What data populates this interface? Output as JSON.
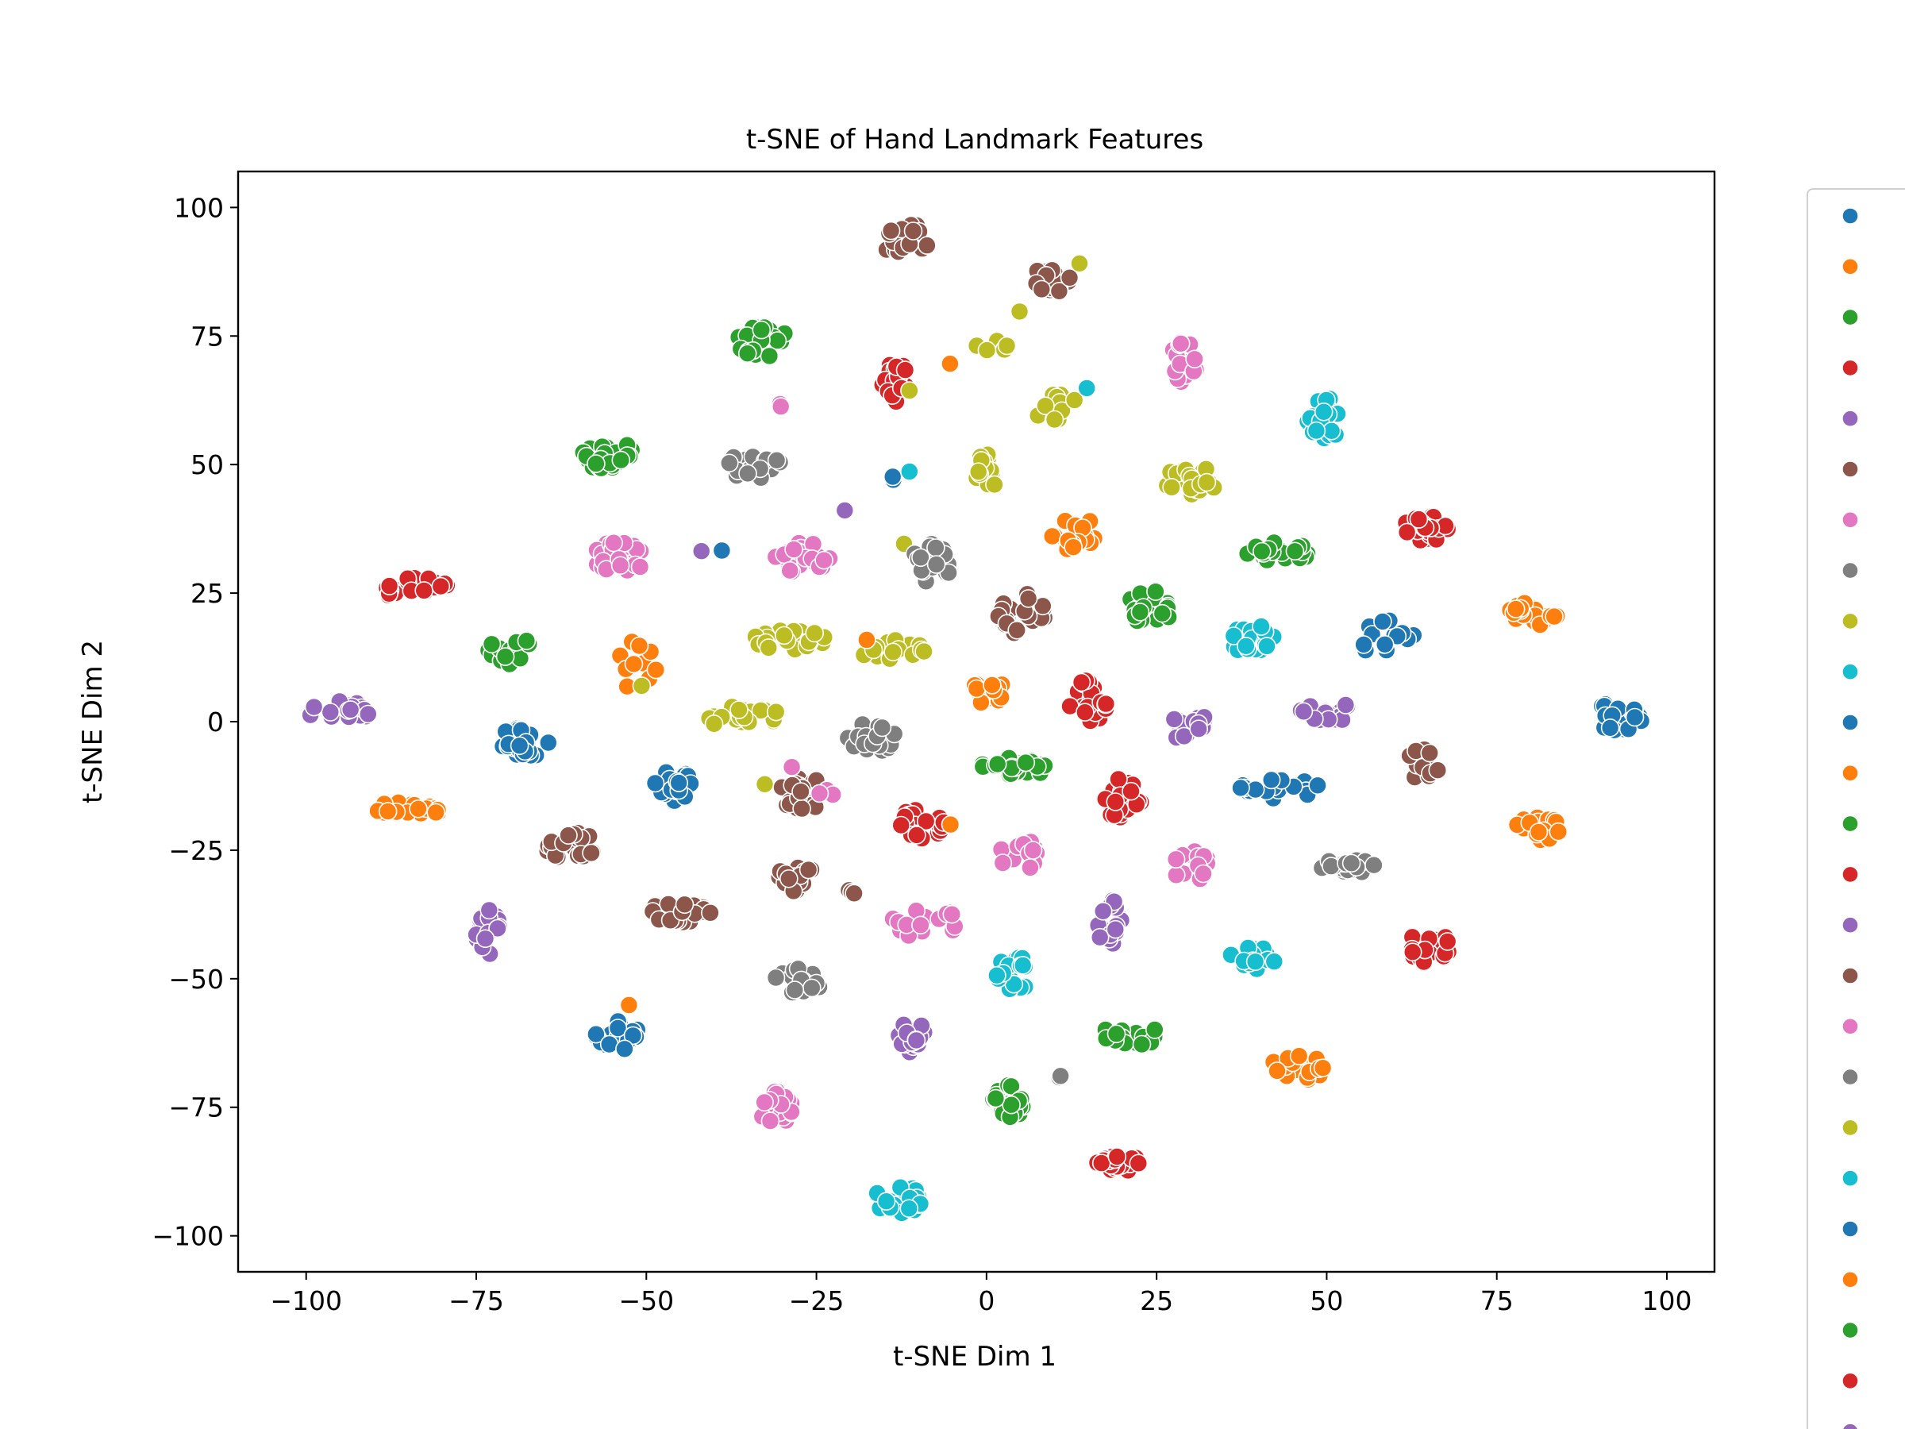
{
  "chart_data": {
    "type": "scatter",
    "title": "t-SNE of Hand Landmark Features",
    "xlabel": "t-SNE Dim 1",
    "ylabel": "t-SNE Dim 2",
    "xlim": [
      -110,
      107
    ],
    "ylim": [
      -107,
      107
    ],
    "xticks": [
      -100,
      -75,
      -50,
      -25,
      0,
      25,
      50,
      75,
      100
    ],
    "yticks": [
      -100,
      -75,
      -50,
      -25,
      0,
      25,
      50,
      75,
      100
    ],
    "xtick_labels": [
      "−100",
      "−75",
      "−50",
      "−25",
      "0",
      "25",
      "50",
      "75",
      "100"
    ],
    "ytick_labels": [
      "−100",
      "−75",
      "−50",
      "−25",
      "0",
      "25",
      "50",
      "75",
      "100"
    ],
    "grid": false,
    "legend": {
      "placement": "right, outside plot (clipped at image edge)",
      "marker_colors": [
        "#1f77b4",
        "#ff7f0e",
        "#2ca02c",
        "#d62728",
        "#9467bd",
        "#8c564b",
        "#e377c2",
        "#7f7f7f",
        "#bcbd22",
        "#17becf",
        "#1f77b4",
        "#ff7f0e",
        "#2ca02c",
        "#d62728",
        "#9467bd",
        "#8c564b",
        "#e377c2",
        "#7f7f7f",
        "#bcbd22",
        "#17becf",
        "#1f77b4",
        "#ff7f0e",
        "#2ca02c",
        "#d62728",
        "#9467bd"
      ]
    },
    "palette": {
      "blue": "#1f77b4",
      "orange": "#ff7f0e",
      "green": "#2ca02c",
      "red": "#d62728",
      "purple": "#9467bd",
      "brown": "#8c564b",
      "pink": "#e377c2",
      "gray": "#7f7f7f",
      "olive": "#bcbd22",
      "cyan": "#17becf"
    },
    "clusters": [
      {
        "color": "brown",
        "x": -12,
        "y": 94,
        "dx": 4,
        "dy": 3,
        "n": 18
      },
      {
        "color": "brown",
        "x": 10,
        "y": 86,
        "dx": 3,
        "dy": 3.5,
        "n": 20
      },
      {
        "color": "olive",
        "x": 14,
        "y": 89,
        "dx": 0.5,
        "dy": 0.5,
        "n": 1
      },
      {
        "color": "olive",
        "x": 5,
        "y": 80,
        "dx": 0.5,
        "dy": 0.5,
        "n": 1
      },
      {
        "color": "olive",
        "x": 1,
        "y": 73,
        "dx": 2.5,
        "dy": 1.5,
        "n": 5
      },
      {
        "color": "orange",
        "x": -5.5,
        "y": 70,
        "dx": 0.5,
        "dy": 0.5,
        "n": 1
      },
      {
        "color": "green",
        "x": -33,
        "y": 74,
        "dx": 4,
        "dy": 3,
        "n": 20
      },
      {
        "color": "pink",
        "x": -30,
        "y": 62,
        "dx": 0.8,
        "dy": 1.2,
        "n": 3
      },
      {
        "color": "red",
        "x": -13.5,
        "y": 66,
        "dx": 2,
        "dy": 4.5,
        "n": 18
      },
      {
        "color": "olive",
        "x": -11,
        "y": 64,
        "dx": 0.5,
        "dy": 0.5,
        "n": 1
      },
      {
        "color": "olive",
        "x": 11,
        "y": 61,
        "dx": 4,
        "dy": 3,
        "n": 12
      },
      {
        "color": "cyan",
        "x": 15,
        "y": 65,
        "dx": 0.5,
        "dy": 0.5,
        "n": 1
      },
      {
        "color": "pink",
        "x": 29,
        "y": 70,
        "dx": 2,
        "dy": 4,
        "n": 20
      },
      {
        "color": "cyan",
        "x": 50,
        "y": 59,
        "dx": 3,
        "dy": 4,
        "n": 22
      },
      {
        "color": "green",
        "x": -56,
        "y": 52,
        "dx": 4,
        "dy": 3,
        "n": 24
      },
      {
        "color": "gray",
        "x": -34,
        "y": 50,
        "dx": 4,
        "dy": 3,
        "n": 22
      },
      {
        "color": "blue",
        "x": -14,
        "y": 47,
        "dx": 0.8,
        "dy": 0.8,
        "n": 2
      },
      {
        "color": "cyan",
        "x": -11.5,
        "y": 49,
        "dx": 0.5,
        "dy": 0.5,
        "n": 1
      },
      {
        "color": "olive",
        "x": 0,
        "y": 48,
        "dx": 1.5,
        "dy": 4.5,
        "n": 16
      },
      {
        "color": "olive",
        "x": 30,
        "y": 47,
        "dx": 4,
        "dy": 3,
        "n": 22
      },
      {
        "color": "red",
        "x": 65,
        "y": 38,
        "dx": 4,
        "dy": 3,
        "n": 22
      },
      {
        "color": "purple",
        "x": -21,
        "y": 41,
        "dx": 0.5,
        "dy": 0.5,
        "n": 1
      },
      {
        "color": "pink",
        "x": -54,
        "y": 32,
        "dx": 4,
        "dy": 3,
        "n": 26
      },
      {
        "color": "purple",
        "x": -42,
        "y": 33,
        "dx": 0.5,
        "dy": 0.5,
        "n": 1
      },
      {
        "color": "blue",
        "x": -39,
        "y": 33,
        "dx": 0.5,
        "dy": 0.5,
        "n": 1
      },
      {
        "color": "pink",
        "x": -27,
        "y": 32,
        "dx": 4,
        "dy": 3.5,
        "n": 22
      },
      {
        "color": "olive",
        "x": -12,
        "y": 35,
        "dx": 0.5,
        "dy": 0.5,
        "n": 1
      },
      {
        "color": "gray",
        "x": -8,
        "y": 31,
        "dx": 3,
        "dy": 4,
        "n": 18
      },
      {
        "color": "orange",
        "x": 13,
        "y": 37,
        "dx": 3.5,
        "dy": 4,
        "n": 18
      },
      {
        "color": "green",
        "x": 43,
        "y": 33,
        "dx": 5,
        "dy": 2,
        "n": 20
      },
      {
        "color": "red",
        "x": -84,
        "y": 26,
        "dx": 5,
        "dy": 2.5,
        "n": 20
      },
      {
        "color": "green",
        "x": -70,
        "y": 14,
        "dx": 3.5,
        "dy": 3,
        "n": 20
      },
      {
        "color": "orange",
        "x": -51,
        "y": 11,
        "dx": 4,
        "dy": 5,
        "n": 12
      },
      {
        "color": "olive",
        "x": -51,
        "y": 7,
        "dx": 0.5,
        "dy": 0.5,
        "n": 1
      },
      {
        "color": "olive",
        "x": -29,
        "y": 16,
        "dx": 6,
        "dy": 2,
        "n": 22
      },
      {
        "color": "olive",
        "x": -14,
        "y": 14,
        "dx": 5,
        "dy": 2,
        "n": 20
      },
      {
        "color": "orange",
        "x": -17.5,
        "y": 16,
        "dx": 0.5,
        "dy": 0.5,
        "n": 1
      },
      {
        "color": "brown",
        "x": 5,
        "y": 21,
        "dx": 4,
        "dy": 4,
        "n": 24
      },
      {
        "color": "green",
        "x": 24,
        "y": 22,
        "dx": 3.5,
        "dy": 3.5,
        "n": 20
      },
      {
        "color": "cyan",
        "x": 39,
        "y": 16,
        "dx": 3.5,
        "dy": 3,
        "n": 20
      },
      {
        "color": "blue",
        "x": 59,
        "y": 16,
        "dx": 4,
        "dy": 4,
        "n": 14
      },
      {
        "color": "orange",
        "x": 80,
        "y": 21,
        "dx": 4,
        "dy": 2.5,
        "n": 24
      },
      {
        "color": "purple",
        "x": -95,
        "y": 2,
        "dx": 5,
        "dy": 2,
        "n": 20
      },
      {
        "color": "olive",
        "x": -36,
        "y": 1,
        "dx": 6,
        "dy": 2,
        "n": 22
      },
      {
        "color": "gray",
        "x": -17,
        "y": -3,
        "dx": 4,
        "dy": 3,
        "n": 20
      },
      {
        "color": "orange",
        "x": 0,
        "y": 6,
        "dx": 2.5,
        "dy": 3.5,
        "n": 18
      },
      {
        "color": "red",
        "x": 15,
        "y": 4,
        "dx": 3,
        "dy": 4,
        "n": 20
      },
      {
        "color": "purple",
        "x": 30,
        "y": -1,
        "dx": 3,
        "dy": 3,
        "n": 18
      },
      {
        "color": "purple",
        "x": 50,
        "y": 2,
        "dx": 5,
        "dy": 2,
        "n": 22
      },
      {
        "color": "blue",
        "x": 93,
        "y": 1,
        "dx": 4,
        "dy": 3,
        "n": 24
      },
      {
        "color": "blue",
        "x": -68,
        "y": -4,
        "dx": 4,
        "dy": 3,
        "n": 26
      },
      {
        "color": "brown",
        "x": 64,
        "y": -9,
        "dx": 2.5,
        "dy": 4,
        "n": 18
      },
      {
        "color": "blue",
        "x": -46,
        "y": -13,
        "dx": 3,
        "dy": 4,
        "n": 22
      },
      {
        "color": "brown",
        "x": -27,
        "y": -14,
        "dx": 4,
        "dy": 3,
        "n": 22
      },
      {
        "color": "olive",
        "x": -33,
        "y": -12,
        "dx": 0.5,
        "dy": 0.5,
        "n": 1
      },
      {
        "color": "pink",
        "x": -29,
        "y": -9,
        "dx": 0.5,
        "dy": 0.5,
        "n": 1
      },
      {
        "color": "pink",
        "x": -24,
        "y": -14,
        "dx": 1.5,
        "dy": 1,
        "n": 3
      },
      {
        "color": "green",
        "x": 4,
        "y": -9,
        "dx": 5,
        "dy": 2,
        "n": 24
      },
      {
        "color": "red",
        "x": 20,
        "y": -15,
        "dx": 3,
        "dy": 4,
        "n": 22
      },
      {
        "color": "blue",
        "x": 43,
        "y": -13,
        "dx": 6,
        "dy": 2,
        "n": 22
      },
      {
        "color": "orange",
        "x": -85,
        "y": -17,
        "dx": 5,
        "dy": 1.5,
        "n": 22
      },
      {
        "color": "brown",
        "x": -61,
        "y": -24,
        "dx": 4,
        "dy": 3,
        "n": 22
      },
      {
        "color": "red",
        "x": -10,
        "y": -20,
        "dx": 4,
        "dy": 3,
        "n": 20
      },
      {
        "color": "orange",
        "x": -5,
        "y": -20,
        "dx": 0.5,
        "dy": 0.5,
        "n": 1
      },
      {
        "color": "pink",
        "x": 5,
        "y": -26,
        "dx": 3,
        "dy": 3.5,
        "n": 18
      },
      {
        "color": "pink",
        "x": 30,
        "y": -28,
        "dx": 3,
        "dy": 3,
        "n": 20
      },
      {
        "color": "gray",
        "x": 53,
        "y": -28,
        "dx": 5,
        "dy": 1.5,
        "n": 18
      },
      {
        "color": "orange",
        "x": 81,
        "y": -21,
        "dx": 3.5,
        "dy": 3,
        "n": 22
      },
      {
        "color": "purple",
        "x": -73,
        "y": -41,
        "dx": 2,
        "dy": 4.5,
        "n": 18
      },
      {
        "color": "brown",
        "x": -45,
        "y": -37,
        "dx": 5,
        "dy": 2,
        "n": 20
      },
      {
        "color": "brown",
        "x": -28,
        "y": -30,
        "dx": 2.5,
        "dy": 3,
        "n": 16
      },
      {
        "color": "brown",
        "x": -20,
        "y": -33,
        "dx": 1,
        "dy": 0.5,
        "n": 3
      },
      {
        "color": "pink",
        "x": -9,
        "y": -39,
        "dx": 5,
        "dy": 3,
        "n": 16
      },
      {
        "color": "purple",
        "x": 18,
        "y": -39,
        "dx": 2,
        "dy": 4.5,
        "n": 18
      },
      {
        "color": "cyan",
        "x": 39,
        "y": -46,
        "dx": 3.5,
        "dy": 2.5,
        "n": 22
      },
      {
        "color": "red",
        "x": 65,
        "y": -44,
        "dx": 3.5,
        "dy": 3,
        "n": 20
      },
      {
        "color": "gray",
        "x": -28,
        "y": -51,
        "dx": 3.5,
        "dy": 3,
        "n": 20
      },
      {
        "color": "cyan",
        "x": 4,
        "y": -49,
        "dx": 2.5,
        "dy": 3.5,
        "n": 18
      },
      {
        "color": "blue",
        "x": -54,
        "y": -61,
        "dx": 3.5,
        "dy": 3,
        "n": 24
      },
      {
        "color": "orange",
        "x": -53,
        "y": -55,
        "dx": 0.5,
        "dy": 0.5,
        "n": 1
      },
      {
        "color": "purple",
        "x": -11,
        "y": -61,
        "dx": 2,
        "dy": 4,
        "n": 18
      },
      {
        "color": "green",
        "x": 21,
        "y": -61,
        "dx": 5,
        "dy": 2,
        "n": 20
      },
      {
        "color": "gray",
        "x": 10,
        "y": -69,
        "dx": 1,
        "dy": 0.5,
        "n": 2
      },
      {
        "color": "orange",
        "x": 46,
        "y": -67,
        "dx": 4,
        "dy": 3,
        "n": 20
      },
      {
        "color": "pink",
        "x": -31,
        "y": -75,
        "dx": 2.5,
        "dy": 3.5,
        "n": 20
      },
      {
        "color": "green",
        "x": 3,
        "y": -74,
        "dx": 2.5,
        "dy": 3.5,
        "n": 20
      },
      {
        "color": "red",
        "x": 20,
        "y": -86,
        "dx": 4.5,
        "dy": 1.5,
        "n": 20
      },
      {
        "color": "cyan",
        "x": -13,
        "y": -93,
        "dx": 3.5,
        "dy": 3,
        "n": 24
      }
    ]
  }
}
